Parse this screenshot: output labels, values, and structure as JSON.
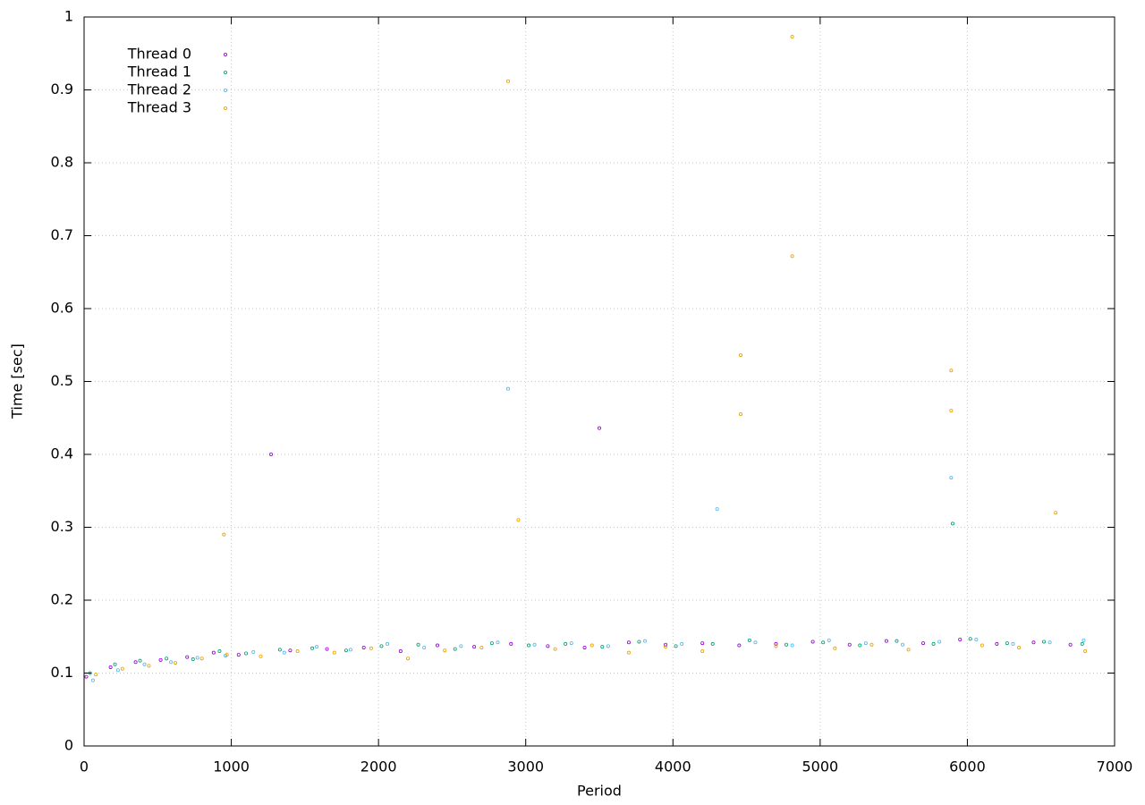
{
  "chart_data": {
    "type": "scatter",
    "xlabel": "Period",
    "ylabel": "Time [sec]",
    "xlim": [
      0,
      7000
    ],
    "ylim": [
      0,
      1
    ],
    "xticks": [
      0,
      1000,
      2000,
      3000,
      4000,
      5000,
      6000,
      7000
    ],
    "yticks": [
      0,
      0.1,
      0.2,
      0.3,
      0.4,
      0.5,
      0.6,
      0.7,
      0.8,
      0.9,
      1
    ],
    "grid": true,
    "legend": "top-left",
    "series": [
      {
        "name": "Thread 0",
        "color": "#9400d3",
        "x": [
          15,
          180,
          350,
          520,
          700,
          880,
          1050,
          1270,
          1400,
          1650,
          1900,
          2150,
          2400,
          2650,
          2900,
          3150,
          3400,
          3500,
          3700,
          3950,
          4200,
          4450,
          4700,
          4950,
          5200,
          5450,
          5700,
          5950,
          6200,
          6450,
          6700
        ],
        "values": [
          0.095,
          0.108,
          0.115,
          0.118,
          0.122,
          0.128,
          0.125,
          0.4,
          0.131,
          0.133,
          0.135,
          0.13,
          0.138,
          0.136,
          0.14,
          0.137,
          0.135,
          0.436,
          0.142,
          0.139,
          0.141,
          0.138,
          0.14,
          0.143,
          0.139,
          0.144,
          0.141,
          0.146,
          0.14,
          0.142,
          0.139
        ]
      },
      {
        "name": "Thread 1",
        "color": "#009e73",
        "x": [
          40,
          210,
          380,
          560,
          740,
          920,
          1100,
          1330,
          1550,
          1780,
          2020,
          2270,
          2520,
          2770,
          3020,
          3270,
          3520,
          3770,
          4020,
          4270,
          4520,
          4770,
          5020,
          5270,
          5520,
          5770,
          5900,
          6020,
          6270,
          6520,
          6780
        ],
        "values": [
          0.1,
          0.112,
          0.117,
          0.12,
          0.119,
          0.13,
          0.127,
          0.132,
          0.134,
          0.131,
          0.137,
          0.139,
          0.133,
          0.141,
          0.138,
          0.14,
          0.136,
          0.143,
          0.137,
          0.14,
          0.145,
          0.139,
          0.142,
          0.138,
          0.144,
          0.14,
          0.305,
          0.147,
          0.141,
          0.143,
          0.14
        ]
      },
      {
        "name": "Thread 2",
        "color": "#56b4e9",
        "x": [
          60,
          230,
          410,
          590,
          770,
          960,
          1150,
          1360,
          1580,
          1810,
          2060,
          2310,
          2560,
          2810,
          2880,
          3060,
          3310,
          3560,
          3810,
          4060,
          4300,
          4560,
          4810,
          5060,
          5310,
          5560,
          5810,
          5890,
          6060,
          6310,
          6560,
          6790
        ],
        "values": [
          0.09,
          0.104,
          0.112,
          0.115,
          0.121,
          0.124,
          0.129,
          0.128,
          0.136,
          0.132,
          0.14,
          0.135,
          0.137,
          0.142,
          0.49,
          0.139,
          0.141,
          0.137,
          0.144,
          0.14,
          0.325,
          0.142,
          0.138,
          0.145,
          0.141,
          0.139,
          0.143,
          0.368,
          0.146,
          0.14,
          0.142,
          0.145
        ]
      },
      {
        "name": "Thread 3",
        "color": "#e69f00",
        "x": [
          80,
          260,
          440,
          620,
          800,
          950,
          970,
          1200,
          1450,
          1700,
          1950,
          2200,
          2450,
          2700,
          2880,
          2950,
          3200,
          3450,
          3700,
          3950,
          4200,
          4460,
          4460,
          4700,
          4810,
          4810,
          5100,
          5350,
          5600,
          5890,
          5890,
          6100,
          6350,
          6600,
          6800
        ],
        "values": [
          0.098,
          0.106,
          0.11,
          0.114,
          0.12,
          0.29,
          0.125,
          0.123,
          0.13,
          0.128,
          0.134,
          0.12,
          0.131,
          0.135,
          0.912,
          0.31,
          0.133,
          0.138,
          0.128,
          0.136,
          0.13,
          0.536,
          0.455,
          0.137,
          0.973,
          0.672,
          0.134,
          0.139,
          0.132,
          0.515,
          0.46,
          0.138,
          0.135,
          0.32,
          0.13
        ]
      }
    ]
  }
}
